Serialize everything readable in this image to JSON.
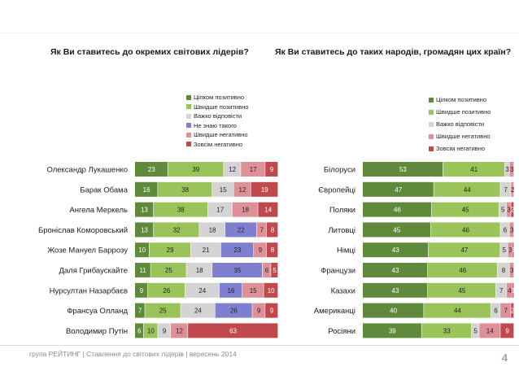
{
  "colors": {
    "very_positive": "#5f8a3b",
    "mostly_positive": "#9ac35a",
    "hard_to_say": "#d4d4d4",
    "dont_know": "#7f7fd0",
    "mostly_negative": "#de9098",
    "very_negative": "#c0494d"
  },
  "footer": {
    "text": "група РЕЙТИНГ | Ставлення до світових лідерів | вересень 2014",
    "page": "4"
  },
  "chart_data": [
    {
      "type": "bar",
      "orientation": "horizontal-stacked",
      "title": "Як Ви ставитесь до окремих світових лідерів?",
      "categories": [
        "Олександр Лукашенко",
        "Барак Обама",
        "Ангела Меркель",
        "Броніслав Коморовський",
        "Жозе Мануел Баррозу",
        "Даля Грибаускайте",
        "Нурсултан Назарбаєв",
        "Франсуа Олланд",
        "Володимир Путін"
      ],
      "series": [
        {
          "name": "Цілком позитивно",
          "color_key": "very_positive",
          "values": [
            23,
            16,
            13,
            13,
            10,
            11,
            9,
            7,
            6
          ]
        },
        {
          "name": "Швидше позитивно",
          "color_key": "mostly_positive",
          "values": [
            39,
            38,
            38,
            32,
            29,
            25,
            26,
            25,
            10
          ]
        },
        {
          "name": "Важко відповісти",
          "color_key": "hard_to_say",
          "values": [
            12,
            15,
            17,
            18,
            21,
            18,
            24,
            24,
            9
          ]
        },
        {
          "name": "Не знаю такого",
          "color_key": "dont_know",
          "values": [
            0,
            0,
            0,
            22,
            23,
            35,
            16,
            26,
            0
          ]
        },
        {
          "name": "Швидше негативно",
          "color_key": "mostly_negative",
          "values": [
            17,
            12,
            18,
            7,
            9,
            6,
            15,
            9,
            12
          ]
        },
        {
          "name": "Зовсім негативно",
          "color_key": "very_negative",
          "values": [
            9,
            19,
            14,
            8,
            8,
            5,
            10,
            9,
            63
          ]
        }
      ],
      "legend_position": "top-right",
      "grid": false
    },
    {
      "type": "bar",
      "orientation": "horizontal-stacked",
      "title": "Як Ви ставитесь до таких народів, громадян цих країн?",
      "categories": [
        "Білоруси",
        "Європейці",
        "Поляки",
        "Литовці",
        "Німці",
        "Французи",
        "Казахи",
        "Американці",
        "Росіяни"
      ],
      "series": [
        {
          "name": "Цілком позитивно",
          "color_key": "very_positive",
          "values": [
            53,
            47,
            46,
            45,
            43,
            43,
            43,
            40,
            39
          ]
        },
        {
          "name": "Швидше позитивно",
          "color_key": "mostly_positive",
          "values": [
            41,
            44,
            45,
            46,
            47,
            46,
            45,
            44,
            33
          ]
        },
        {
          "name": "Важко відповісти",
          "color_key": "hard_to_say",
          "values": [
            3,
            7,
            5,
            6,
            5,
            8,
            7,
            6,
            5
          ]
        },
        {
          "name": "Швидше негативно",
          "color_key": "mostly_negative",
          "values": [
            3,
            2,
            3,
            3,
            3,
            3,
            4,
            7,
            14
          ]
        },
        {
          "name": "Зовсім негативно",
          "color_key": "very_negative",
          "values": [
            0,
            0,
            2,
            0,
            1,
            0,
            1,
            2,
            9
          ]
        }
      ],
      "legend_position": "top-right",
      "grid": false
    }
  ]
}
